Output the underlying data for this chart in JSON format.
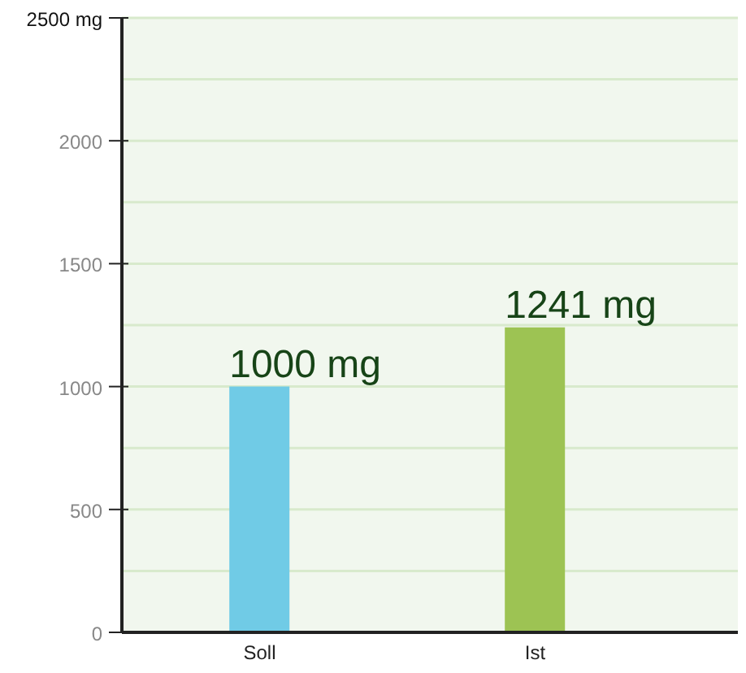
{
  "chart_data": {
    "type": "bar",
    "categories": [
      "Soll",
      "Ist"
    ],
    "values": [
      1000,
      1241
    ],
    "colors": [
      "#70cbe6",
      "#9dc353"
    ],
    "value_labels": [
      "1000 mg",
      "1241 mg"
    ],
    "ylim": [
      0,
      2500
    ],
    "yticks": [
      0,
      {
        "value": 250,
        "label": null
      },
      500,
      {
        "value": 750,
        "label": null
      },
      1000,
      {
        "value": 1250,
        "label": null
      },
      1500,
      {
        "value": 1750,
        "label": null
      },
      2000,
      {
        "value": 2250,
        "label": null
      },
      {
        "value": 2500,
        "label": "2500 mg"
      }
    ],
    "grid": "y"
  }
}
